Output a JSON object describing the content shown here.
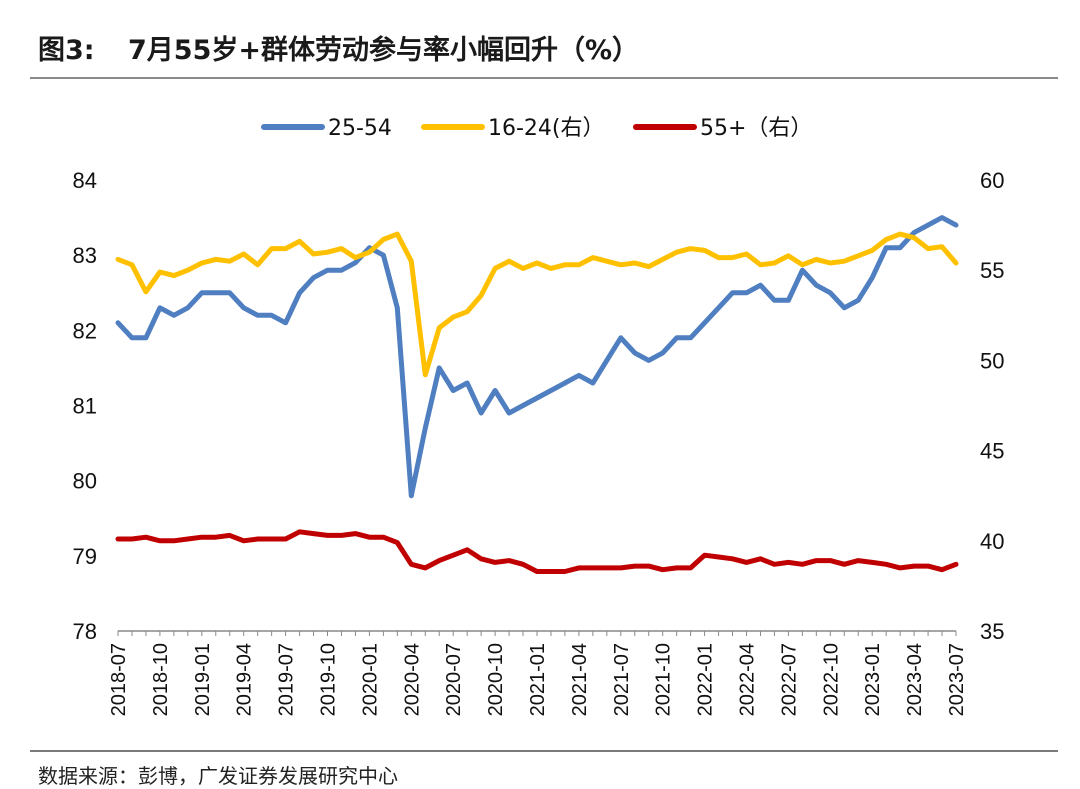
{
  "header": {
    "figure_label": "图3:",
    "title": "7月55岁+群体劳动参与率小幅回升（%）"
  },
  "footer": {
    "source": "数据来源：彭博，广发证券发展研究中心"
  },
  "colors": {
    "s25_54": "#4f7fc1",
    "s16_24": "#ffc000",
    "s55": "#c00000"
  },
  "chart_data": {
    "type": "line",
    "title": "7月55岁+群体劳动参与率小幅回升（%）",
    "x": [
      "2018-07",
      "2018-08",
      "2018-09",
      "2018-10",
      "2018-11",
      "2018-12",
      "2019-01",
      "2019-02",
      "2019-03",
      "2019-04",
      "2019-05",
      "2019-06",
      "2019-07",
      "2019-08",
      "2019-09",
      "2019-10",
      "2019-11",
      "2019-12",
      "2020-01",
      "2020-02",
      "2020-03",
      "2020-04",
      "2020-05",
      "2020-06",
      "2020-07",
      "2020-08",
      "2020-09",
      "2020-10",
      "2020-11",
      "2020-12",
      "2021-01",
      "2021-02",
      "2021-03",
      "2021-04",
      "2021-05",
      "2021-06",
      "2021-07",
      "2021-08",
      "2021-09",
      "2021-10",
      "2021-11",
      "2021-12",
      "2022-01",
      "2022-02",
      "2022-03",
      "2022-04",
      "2022-05",
      "2022-06",
      "2022-07",
      "2022-08",
      "2022-09",
      "2022-10",
      "2022-11",
      "2022-12",
      "2023-01",
      "2023-02",
      "2023-03",
      "2023-04",
      "2023-05",
      "2023-06",
      "2023-07"
    ],
    "x_tick_labels": [
      "2018-07",
      "2018-10",
      "2019-01",
      "2019-04",
      "2019-07",
      "2019-10",
      "2020-01",
      "2020-04",
      "2020-07",
      "2020-10",
      "2021-01",
      "2021-04",
      "2021-07",
      "2021-10",
      "2022-01",
      "2022-04",
      "2022-07",
      "2022-10",
      "2023-01",
      "2023-04",
      "2023-07"
    ],
    "y_left": {
      "ylim": [
        78,
        84
      ],
      "ticks": [
        "78",
        "79",
        "80",
        "81",
        "82",
        "83",
        "84"
      ]
    },
    "y_right": {
      "ylim": [
        35,
        60
      ],
      "ticks": [
        "35",
        "40",
        "45",
        "50",
        "55",
        "60"
      ]
    },
    "legend_position": "top-center",
    "grid": false,
    "series": [
      {
        "name": "25-54",
        "axis": "left",
        "color": "#4f7fc1",
        "values": [
          82.1,
          81.9,
          81.9,
          82.3,
          82.2,
          82.3,
          82.5,
          82.5,
          82.5,
          82.3,
          82.2,
          82.2,
          82.1,
          82.5,
          82.7,
          82.8,
          82.8,
          82.9,
          83.1,
          83.0,
          82.3,
          79.8,
          80.7,
          81.5,
          81.2,
          81.3,
          80.9,
          81.2,
          80.9,
          81.0,
          81.1,
          81.2,
          81.3,
          81.4,
          81.3,
          81.6,
          81.9,
          81.7,
          81.6,
          81.7,
          81.9,
          81.9,
          82.1,
          82.3,
          82.5,
          82.5,
          82.6,
          82.4,
          82.4,
          82.8,
          82.6,
          82.5,
          82.3,
          82.4,
          82.7,
          83.1,
          83.1,
          83.3,
          83.4,
          83.5,
          83.4
        ]
      },
      {
        "name": "16-24(右）",
        "axis": "right",
        "color": "#ffc000",
        "values": [
          55.6,
          55.3,
          53.8,
          54.9,
          54.7,
          55.0,
          55.4,
          55.6,
          55.5,
          55.9,
          55.3,
          56.2,
          56.2,
          56.6,
          55.9,
          56.0,
          56.2,
          55.7,
          56.0,
          56.7,
          57.0,
          55.5,
          49.2,
          51.8,
          52.4,
          52.7,
          53.6,
          55.1,
          55.5,
          55.1,
          55.4,
          55.1,
          55.3,
          55.3,
          55.7,
          55.5,
          55.3,
          55.4,
          55.2,
          55.6,
          56.0,
          56.2,
          56.1,
          55.7,
          55.7,
          55.9,
          55.3,
          55.4,
          55.8,
          55.3,
          55.6,
          55.4,
          55.5,
          55.8,
          56.1,
          56.7,
          57.0,
          56.8,
          56.2,
          56.3,
          55.4
        ]
      },
      {
        "name": "55+（右）",
        "axis": "right",
        "color": "#c00000",
        "values": [
          40.1,
          40.1,
          40.2,
          40.0,
          40.0,
          40.1,
          40.2,
          40.2,
          40.3,
          40.0,
          40.1,
          40.1,
          40.1,
          40.5,
          40.4,
          40.3,
          40.3,
          40.4,
          40.2,
          40.2,
          39.9,
          38.7,
          38.5,
          38.9,
          39.2,
          39.5,
          39.0,
          38.8,
          38.9,
          38.7,
          38.3,
          38.3,
          38.3,
          38.5,
          38.5,
          38.5,
          38.5,
          38.6,
          38.6,
          38.4,
          38.5,
          38.5,
          39.2,
          39.1,
          39.0,
          38.8,
          39.0,
          38.7,
          38.8,
          38.7,
          38.9,
          38.9,
          38.7,
          38.9,
          38.8,
          38.7,
          38.5,
          38.6,
          38.6,
          38.4,
          38.7
        ]
      }
    ]
  }
}
